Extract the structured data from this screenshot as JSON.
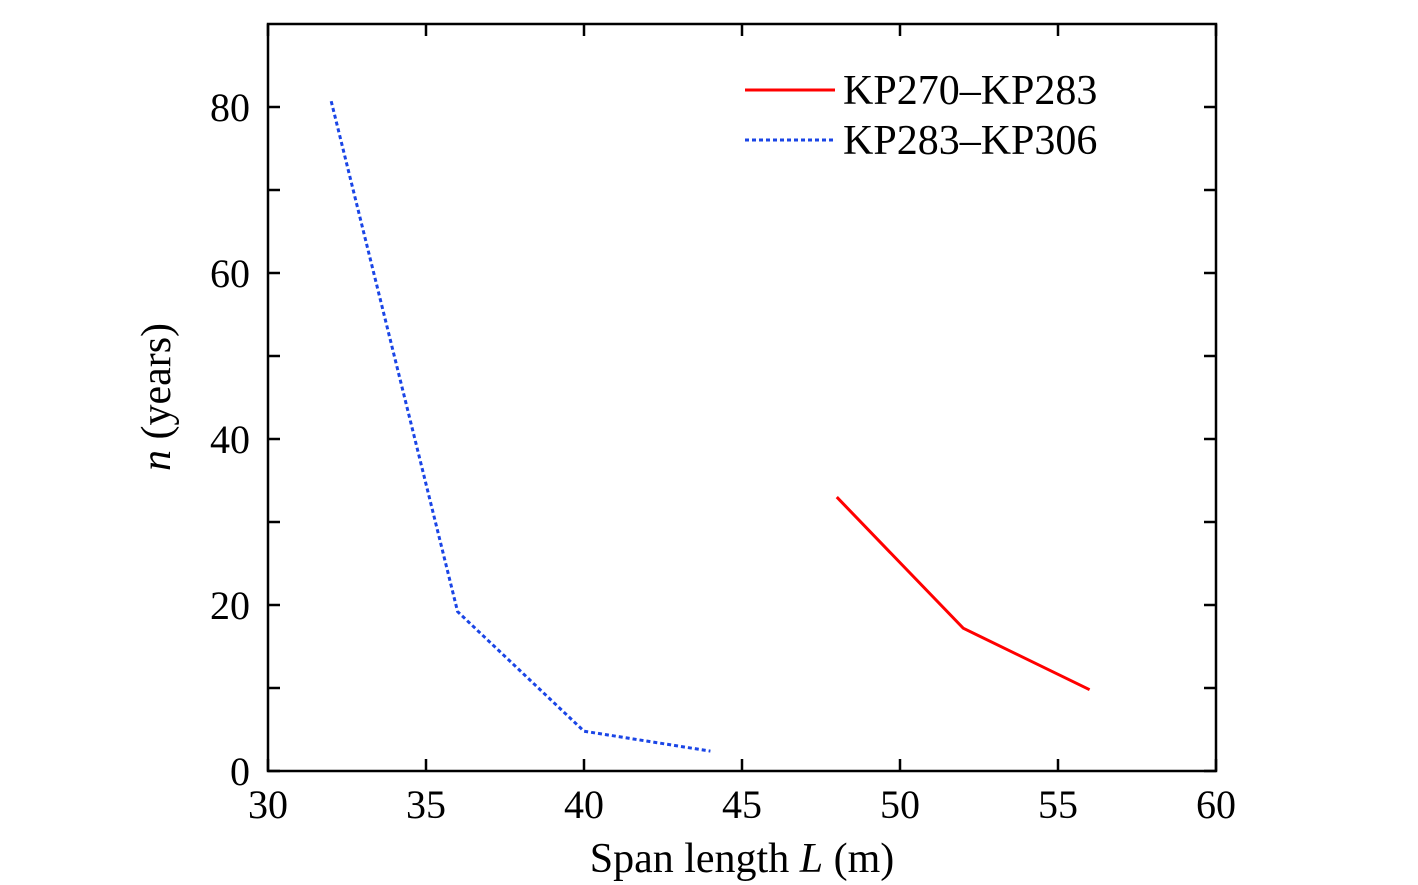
{
  "chart_data": {
    "type": "line",
    "xlabel_parts": [
      {
        "text": "Span length ",
        "italic": false
      },
      {
        "text": "L",
        "italic": true
      },
      {
        "text": " (m)",
        "italic": false
      }
    ],
    "ylabel_parts": [
      {
        "text": "n",
        "italic": true
      },
      {
        "text": " (years)",
        "italic": false
      }
    ],
    "xlim": [
      30,
      60
    ],
    "ylim": [
      0,
      90
    ],
    "xticks": [
      30,
      35,
      40,
      45,
      50,
      55,
      60
    ],
    "yticks": [
      0,
      20,
      40,
      60,
      80
    ],
    "y_minor_ticks": [
      10,
      30,
      50,
      70
    ],
    "grid": false,
    "legend_position": "top-right",
    "series": [
      {
        "name": "KP270–KP283",
        "color": "#ff0000",
        "style": "solid",
        "x": [
          48,
          52,
          56
        ],
        "y": [
          33,
          17.2,
          9.8
        ]
      },
      {
        "name": "KP283–KP306",
        "color": "#1a45e6",
        "style": "dotted",
        "x": [
          32,
          36,
          40,
          44
        ],
        "y": [
          80.7,
          19.2,
          4.8,
          2.4
        ]
      }
    ]
  }
}
